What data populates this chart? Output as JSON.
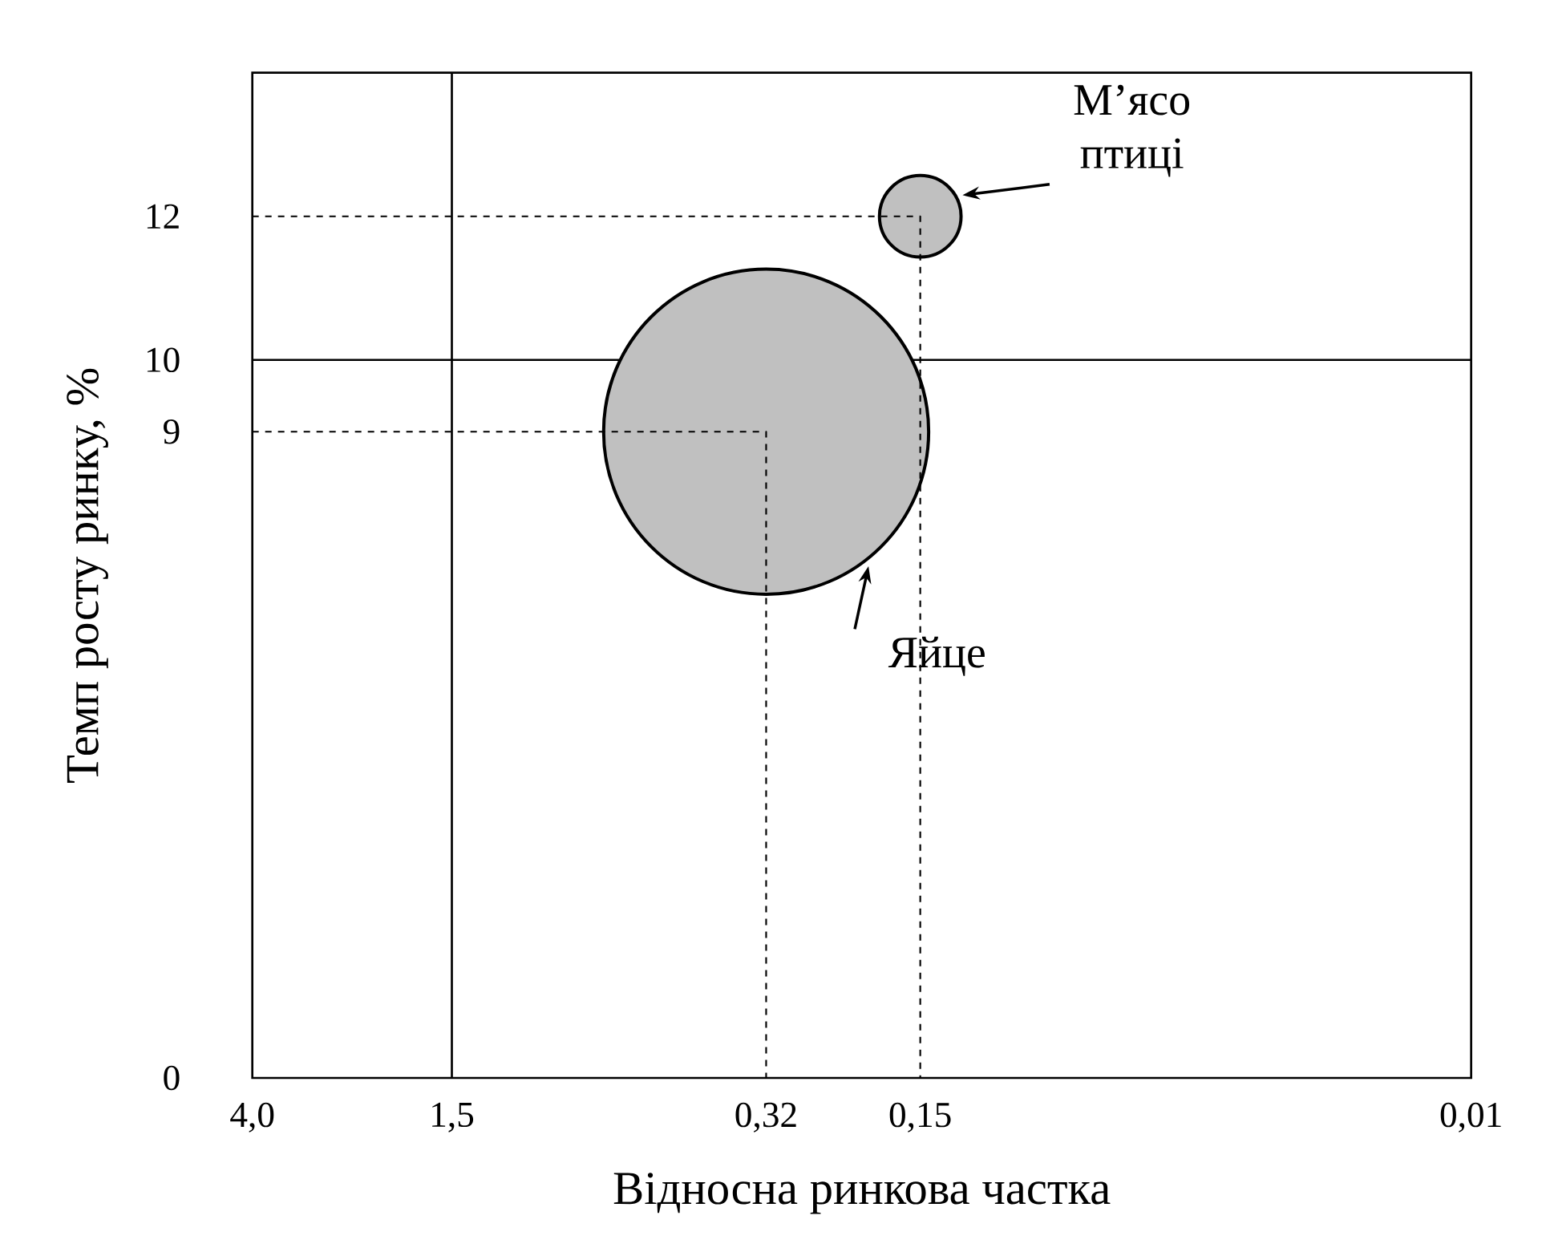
{
  "chart_data": {
    "type": "bubble",
    "xlabel": "Відносна ринкова частка",
    "ylabel": "Темп росту ринку, %",
    "series": [
      {
        "type": "bubble",
        "x": [
          0.32,
          0.15
        ],
        "values": [
          9,
          12
        ],
        "sizes": [
          1,
          0.063
        ],
        "color": "#c0c0c0"
      },
      {
        "type": "line",
        "x": [
          4,
          0.32,
          0.32
        ],
        "values": [
          9,
          9,
          0
        ],
        "color": "#000000",
        "line_style": "dashed"
      },
      {
        "type": "line",
        "x": [
          4,
          0.15,
          0.15
        ],
        "values": [
          12,
          12,
          0
        ],
        "color": "#000000",
        "line_style": "dashed"
      }
    ],
    "log": "x",
    "xlim": [
      4,
      0.01
    ],
    "xticks": [
      {
        "value": 4,
        "label": "4,0"
      },
      {
        "value": 1.5,
        "label": "1,5"
      },
      {
        "value": 0.32,
        "label": "0,32"
      },
      {
        "value": 0.15,
        "label": "0,15"
      },
      {
        "value": 0.01,
        "label": "0,01"
      }
    ],
    "ylim": [
      0,
      14
    ],
    "yticks": [
      0,
      9,
      10,
      12
    ],
    "ref_lines": [
      {
        "axis": "x",
        "value": 1.5
      },
      {
        "axis": "y",
        "value": 10
      }
    ],
    "annotations": [
      "Яйце",
      "М’ясо птиці"
    ]
  }
}
